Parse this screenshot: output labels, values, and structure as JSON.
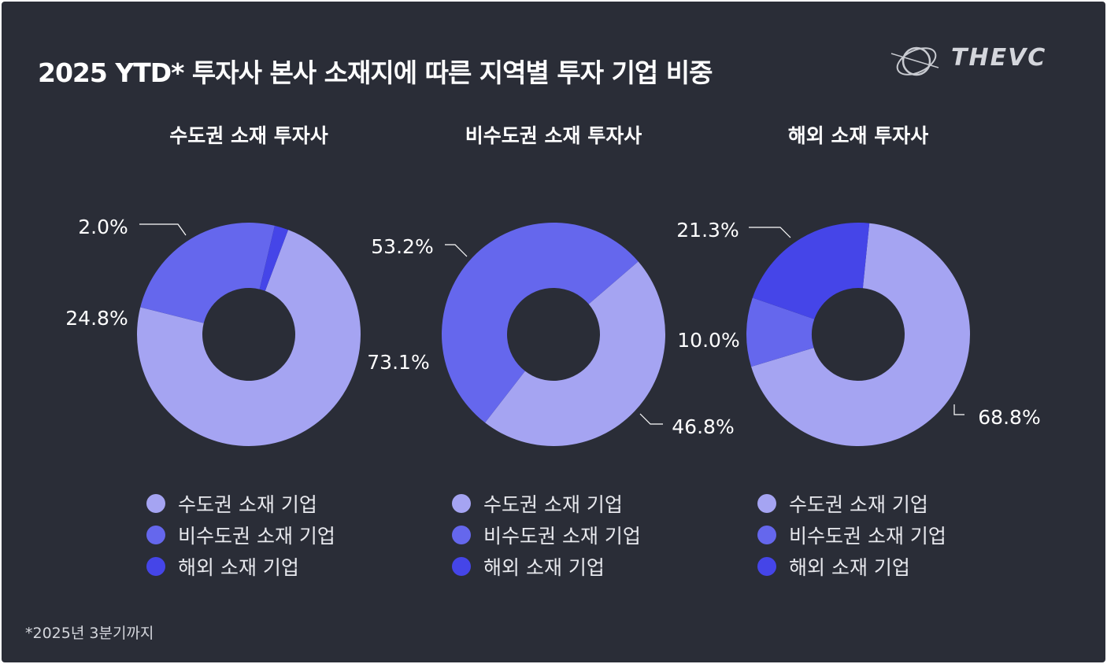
{
  "header": {
    "title": "2025 YTD* 투자사 본사 소재지에 따른 지역별 투자 기업 비중",
    "brand": "THEVC"
  },
  "footnote": "*2025년 3분기까지",
  "colors": {
    "capital": "#a5a4f2",
    "noncapital": "#6567ed",
    "overseas": "#4545e8",
    "background": "#2a2d37"
  },
  "legend": [
    {
      "label": "수도권 소재 기업",
      "color": "#a5a4f2"
    },
    {
      "label": "비수도권 소재 기업",
      "color": "#6567ed"
    },
    {
      "label": "해외 소재 기업",
      "color": "#4545e8"
    }
  ],
  "chart_data": [
    {
      "type": "pie",
      "donut": true,
      "title": "수도권 소재 투자사",
      "categories": [
        "수도권 소재 기업",
        "비수도권 소재 기업",
        "해외 소재 기업"
      ],
      "values": [
        73.1,
        24.8,
        2.0
      ],
      "labels": [
        "73.1%",
        "24.8%",
        "2.0%"
      ]
    },
    {
      "type": "pie",
      "donut": true,
      "title": "비수도권 소재 투자사",
      "categories": [
        "수도권 소재 기업",
        "비수도권 소재 기업",
        "해외 소재 기업"
      ],
      "values": [
        46.8,
        53.2,
        0
      ],
      "labels": [
        "46.8%",
        "53.2%",
        ""
      ]
    },
    {
      "type": "pie",
      "donut": true,
      "title": "해외 소재 투자사",
      "categories": [
        "수도권 소재 기업",
        "비수도권 소재 기업",
        "해외 소재 기업"
      ],
      "values": [
        68.8,
        10.0,
        21.3
      ],
      "labels": [
        "68.8%",
        "10.0%",
        "21.3%"
      ]
    }
  ]
}
